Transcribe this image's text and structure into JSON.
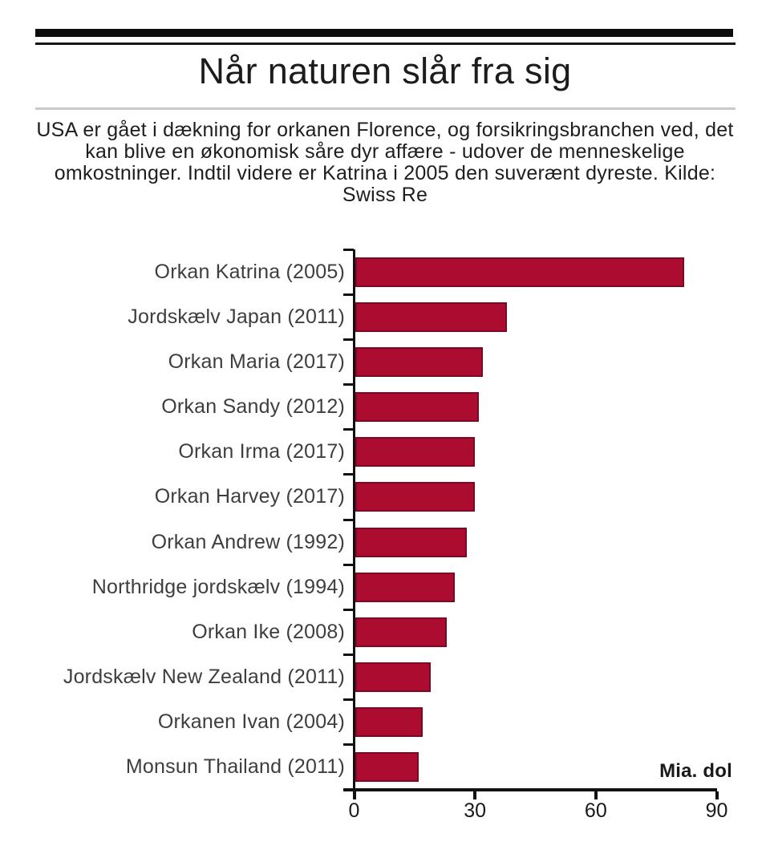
{
  "header": {
    "title": "Når naturen slår fra sig",
    "subtitle": "USA er gået i dækning for orkanen Florence, og forsikringsbranchen ved, det kan blive en økonomisk såre dyr affære - udover de menneskelige omkostninger. Indtil videre er Katrina i 2005 den suverænt dyreste. Kilde: Swiss Re"
  },
  "chart_data": {
    "type": "bar",
    "orientation": "horizontal",
    "title": "Når naturen slår fra sig",
    "categories": [
      "Orkan Katrina (2005)",
      "Jordskælv Japan (2011)",
      "Orkan Maria (2017)",
      "Orkan Sandy (2012)",
      "Orkan Irma (2017)",
      "Orkan Harvey (2017)",
      "Orkan Andrew (1992)",
      "Northridge jordskælv (1994)",
      "Orkan Ike (2008)",
      "Jordskælv New Zealand (2011)",
      "Orkanen Ivan (2004)",
      "Monsun Thailand (2011)"
    ],
    "values": [
      82,
      38,
      32,
      31,
      30,
      30,
      28,
      25,
      23,
      19,
      17,
      16
    ],
    "xlabel": "Mia. dol",
    "x_ticks": [
      0,
      30,
      60,
      90
    ],
    "xlim": [
      0,
      90
    ],
    "grid": false,
    "legend": false,
    "bar_color": "#AC0C30",
    "axis_color": "#111111"
  }
}
